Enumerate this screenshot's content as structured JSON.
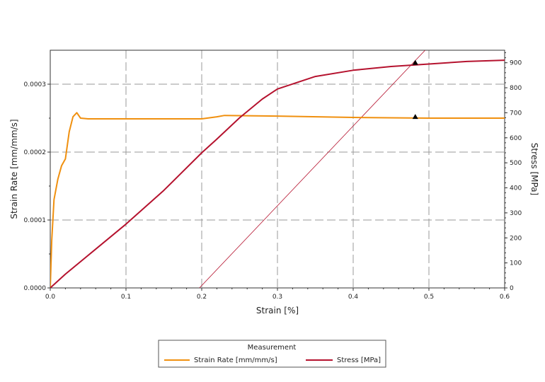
{
  "chart_data": {
    "type": "line",
    "xlabel": "Strain [%]",
    "ylabel_left": "Strain Rate [mm/mm/s]",
    "ylabel_right": "Stress [MPa]",
    "xlim": [
      0.0,
      0.6
    ],
    "ylim_left": [
      0.0,
      0.00035
    ],
    "ylim_right": [
      0,
      950
    ],
    "x_ticks": [
      "0.0",
      "0.1",
      "0.2",
      "0.3",
      "0.4",
      "0.5",
      "0.6"
    ],
    "y_left_ticks": [
      "0.0000",
      "0.0001",
      "0.0002",
      "0.0003"
    ],
    "y_right_ticks": [
      "0",
      "100",
      "200",
      "300",
      "400",
      "500",
      "600",
      "700",
      "800",
      "900"
    ],
    "grid": true,
    "legend": {
      "title": "Measurement",
      "placement": "bottom-center"
    },
    "colors": {
      "strain_rate": "#f0900f",
      "stress": "#b5122e",
      "offset_line": "#b5122e",
      "marker": "#000000",
      "grid": "#9a9a9a"
    },
    "series": [
      {
        "name": "Strain Rate [mm/mm/s]",
        "axis": "left",
        "x": [
          0.0,
          0.002,
          0.005,
          0.01,
          0.015,
          0.02,
          0.025,
          0.03,
          0.035,
          0.04,
          0.05,
          0.1,
          0.15,
          0.2,
          0.22,
          0.23,
          0.3,
          0.4,
          0.5,
          0.55,
          0.6
        ],
        "y": [
          0.0,
          7e-05,
          0.00013,
          0.00016,
          0.00018,
          0.00019,
          0.00023,
          0.000252,
          0.000258,
          0.00025,
          0.000249,
          0.000249,
          0.000249,
          0.000249,
          0.000252,
          0.000254,
          0.000253,
          0.000251,
          0.00025,
          0.00025,
          0.00025
        ]
      },
      {
        "name": "Stress [MPa]",
        "axis": "right",
        "x": [
          0.0,
          0.02,
          0.05,
          0.1,
          0.15,
          0.2,
          0.22,
          0.25,
          0.28,
          0.3,
          0.35,
          0.4,
          0.45,
          0.5,
          0.55,
          0.6
        ],
        "y": [
          0,
          55,
          130,
          255,
          390,
          540,
          595,
          680,
          755,
          795,
          845,
          870,
          885,
          895,
          905,
          910
        ]
      }
    ],
    "offset_line": {
      "x": [
        0.197,
        0.495
      ],
      "y_right": [
        0,
        950
      ]
    },
    "markers": [
      {
        "x": 0.482,
        "axis": "right",
        "y": 900
      },
      {
        "x": 0.482,
        "axis": "left",
        "y": 0.000252
      }
    ]
  }
}
